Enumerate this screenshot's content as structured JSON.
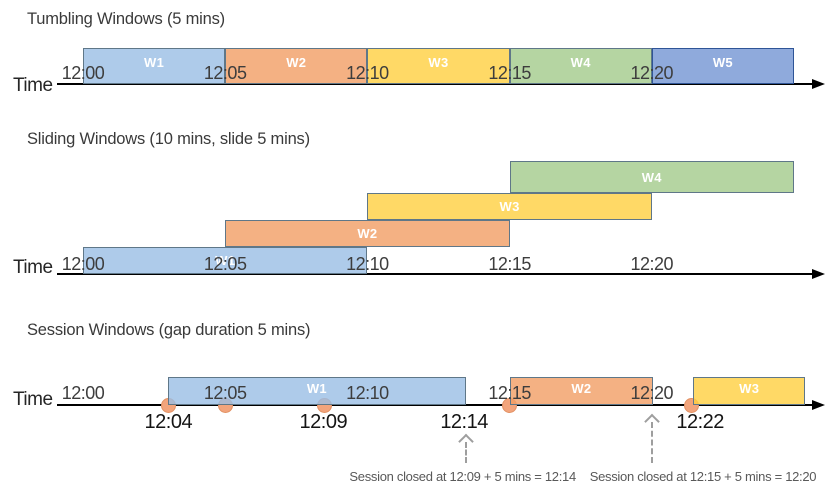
{
  "diagram": {
    "colors": {
      "blue": {
        "fill": "rgba(154,190,229,0.8)",
        "border": "#5F7788"
      },
      "orange": {
        "fill": "rgba(241,158,100,0.8)",
        "border": "#5F7788"
      },
      "yellow": {
        "fill": "rgba(255,208,64,0.8)",
        "border": "#5F7788"
      },
      "green": {
        "fill": "rgba(163,203,139,0.8)",
        "border": "#5F7788"
      },
      "periwinkle": {
        "fill": "rgba(115,149,211,0.8)",
        "border": "#2F5597"
      },
      "event_dot_fill": "#F2A47C",
      "event_dot_border": "#E29163",
      "axis": "#000000",
      "annotation_gray": "#595959",
      "arrow_gray": "#9E9E9E"
    },
    "sections": [
      {
        "id": "tumbling",
        "title": "Tumbling Windows (5 mins)",
        "axis_label": "Time",
        "ticks": [
          {
            "label": "12:00",
            "min": 0
          },
          {
            "label": "12:05",
            "min": 5
          },
          {
            "label": "12:10",
            "min": 10
          },
          {
            "label": "12:15",
            "min": 15
          },
          {
            "label": "12:20",
            "min": 20
          }
        ],
        "windows": [
          {
            "label": "W1",
            "color": "blue",
            "start_min": 0,
            "end_min": 5,
            "row": 0
          },
          {
            "label": "W2",
            "color": "orange",
            "start_min": 5,
            "end_min": 10,
            "row": 0
          },
          {
            "label": "W3",
            "color": "yellow",
            "start_min": 10,
            "end_min": 15,
            "row": 0
          },
          {
            "label": "W4",
            "color": "green",
            "start_min": 15,
            "end_min": 20,
            "row": 0
          },
          {
            "label": "W5",
            "color": "periwinkle",
            "start_min": 20,
            "end_min": 25,
            "row": 0
          }
        ]
      },
      {
        "id": "sliding",
        "title": "Sliding Windows (10 mins, slide 5 mins)",
        "axis_label": "Time",
        "ticks": [
          {
            "label": "12:00",
            "min": 0
          },
          {
            "label": "12:05",
            "min": 5
          },
          {
            "label": "12:10",
            "min": 10
          },
          {
            "label": "12:15",
            "min": 15
          },
          {
            "label": "12:20",
            "min": 20
          }
        ],
        "windows": [
          {
            "label": "W1",
            "color": "blue",
            "start_min": 0,
            "end_min": 10,
            "row": 0
          },
          {
            "label": "W2",
            "color": "orange",
            "start_min": 5,
            "end_min": 15,
            "row": 1
          },
          {
            "label": "W3",
            "color": "yellow",
            "start_min": 10,
            "end_min": 20,
            "row": 2
          },
          {
            "label": "W4",
            "color": "green",
            "start_min": 15,
            "end_min": 25,
            "row": 3
          }
        ]
      },
      {
        "id": "session",
        "title": "Session Windows (gap duration 5 mins)",
        "axis_label": "Time",
        "ticks": [
          {
            "label": "12:00",
            "min": 0
          },
          {
            "label": "12:05",
            "min": 5
          },
          {
            "label": "12:10",
            "min": 10
          },
          {
            "label": "12:15",
            "min": 15
          },
          {
            "label": "12:20",
            "min": 20
          }
        ],
        "windows": [
          {
            "label": "W1",
            "color": "blue",
            "start_min": 3,
            "end_min": 13.45,
            "row": 0
          },
          {
            "label": "W2",
            "color": "orange",
            "start_min": 15,
            "end_min": 20.05,
            "row": 0
          },
          {
            "label": "W3",
            "color": "yellow",
            "start_min": 21.45,
            "end_min": 25.4,
            "row": 0
          }
        ],
        "events": [
          {
            "min": 3
          },
          {
            "min": 5
          },
          {
            "min": 8.5
          },
          {
            "min": 15
          },
          {
            "min": 21.4
          }
        ],
        "event_labels": [
          {
            "label": "12:04",
            "min": 3
          },
          {
            "label": "12:09",
            "min": 8.45
          },
          {
            "label": "12:14",
            "min": 13.4
          },
          {
            "label": "12:22",
            "min": 21.7
          }
        ],
        "callouts": [
          {
            "text": "Session closed at 12:09 + 5 mins = 12:14",
            "arrow_min": 13.45,
            "text_center_min": 13.35
          },
          {
            "text": "Session closed at 12:15 + 5 mins = 12:20",
            "arrow_min": 20.0,
            "text_center_min": 21.8
          }
        ]
      }
    ]
  }
}
